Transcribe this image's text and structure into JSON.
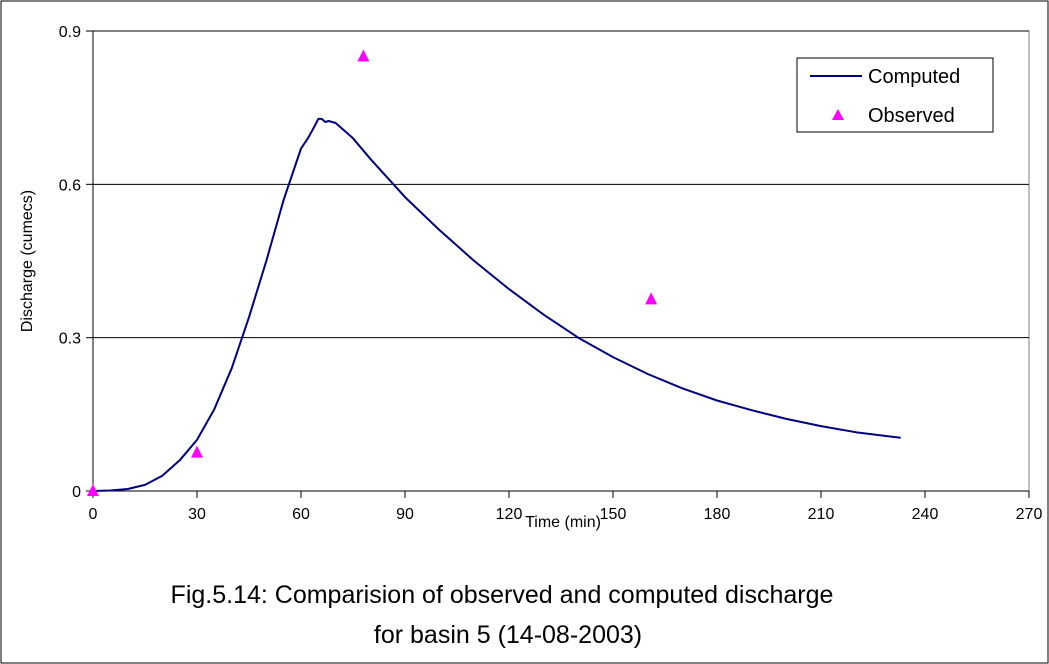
{
  "chart_data": {
    "type": "line",
    "caption_line1": "Fig.5.14: Comparision of observed and computed discharge",
    "caption_line2": "for basin 5 (14-08-2003)",
    "xlabel": "Time (min)",
    "ylabel": "Discharge (cumecs)",
    "xlim": [
      0,
      270
    ],
    "ylim": [
      0,
      0.9
    ],
    "x_ticks": [
      0,
      30,
      60,
      90,
      120,
      150,
      180,
      210,
      240,
      270
    ],
    "y_ticks": [
      0,
      0.3,
      0.6,
      0.9
    ],
    "x_tick_labels": [
      "0",
      "30",
      "60",
      "90",
      "120",
      "150",
      "180",
      "210",
      "240",
      "270"
    ],
    "y_tick_labels": [
      "0",
      "0.3",
      "0.6",
      "0.9"
    ],
    "grid": "horizontal",
    "legend_position": "top-right",
    "series": [
      {
        "name": "Computed",
        "kind": "line",
        "color": "#000080",
        "x": [
          0,
          5,
          10,
          15,
          20,
          25,
          30,
          35,
          40,
          45,
          50,
          55,
          58,
          60,
          62,
          64,
          65,
          66,
          67,
          68,
          70,
          75,
          80,
          90,
          100,
          110,
          120,
          130,
          140,
          150,
          160,
          170,
          180,
          190,
          200,
          210,
          220,
          233
        ],
        "y": [
          0,
          0.001,
          0.004,
          0.012,
          0.03,
          0.06,
          0.1,
          0.16,
          0.24,
          0.34,
          0.45,
          0.57,
          0.63,
          0.67,
          0.69,
          0.715,
          0.728,
          0.728,
          0.722,
          0.724,
          0.72,
          0.69,
          0.65,
          0.575,
          0.51,
          0.45,
          0.395,
          0.345,
          0.3,
          0.262,
          0.229,
          0.201,
          0.177,
          0.158,
          0.141,
          0.127,
          0.115,
          0.104
        ]
      },
      {
        "name": "Observed",
        "kind": "scatter",
        "marker": "triangle",
        "color": "#ff00ff",
        "x": [
          0,
          30,
          78,
          161
        ],
        "y": [
          0.0,
          0.075,
          0.85,
          0.375
        ]
      }
    ]
  }
}
